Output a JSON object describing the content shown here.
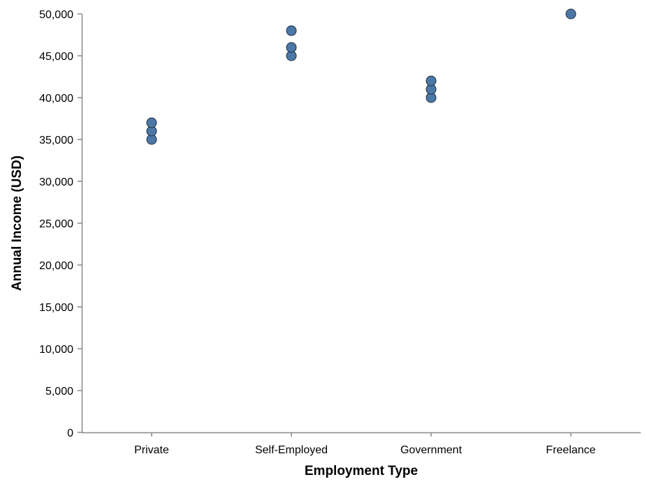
{
  "chart_data": {
    "type": "scatter",
    "title": "",
    "xlabel": "Employment Type",
    "ylabel": "Annual Income (USD)",
    "categories": [
      "Private",
      "Self-Employed",
      "Government",
      "Freelance"
    ],
    "points": [
      {
        "x": "Private",
        "y": 35000
      },
      {
        "x": "Private",
        "y": 36000
      },
      {
        "x": "Private",
        "y": 37000
      },
      {
        "x": "Self-Employed",
        "y": 45000
      },
      {
        "x": "Self-Employed",
        "y": 46000
      },
      {
        "x": "Self-Employed",
        "y": 48000
      },
      {
        "x": "Government",
        "y": 40000
      },
      {
        "x": "Government",
        "y": 41000
      },
      {
        "x": "Government",
        "y": 42000
      },
      {
        "x": "Freelance",
        "y": 50000
      }
    ],
    "ylim": [
      0,
      50000
    ],
    "y_ticks": [
      0,
      5000,
      10000,
      15000,
      20000,
      25000,
      30000,
      35000,
      40000,
      45000,
      50000
    ],
    "y_tick_labels": [
      "0",
      "5,000",
      "10,000",
      "15,000",
      "20,000",
      "25,000",
      "30,000",
      "35,000",
      "40,000",
      "45,000",
      "50,000"
    ],
    "grid": false,
    "legend": "none",
    "colors": {
      "point_fill": "#4c78a8",
      "point_stroke": "#1f2d3d",
      "axis": "#888888"
    }
  }
}
